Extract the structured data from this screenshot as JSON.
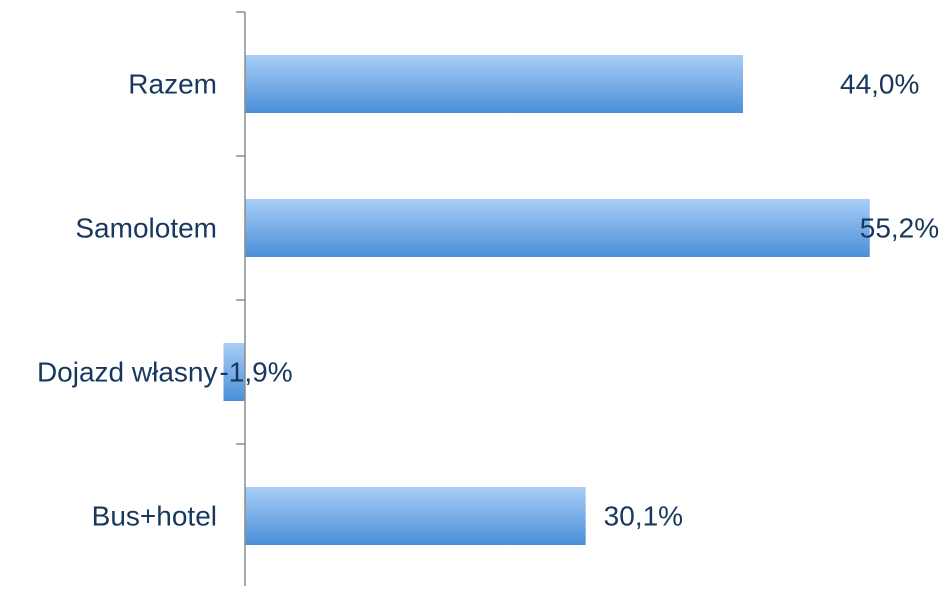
{
  "chart_data": {
    "type": "bar",
    "orientation": "horizontal",
    "categories": [
      "Razem",
      "Samolotem",
      "Dojazd własny",
      "Bus+hotel"
    ],
    "values": [
      44.0,
      55.2,
      -1.9,
      30.1
    ],
    "data_labels": [
      "44,0%",
      "55,2%",
      "-1,9%",
      "30,1%"
    ],
    "value_unit": "%",
    "xlim": [
      -1.9,
      55.2
    ],
    "title": "",
    "xlabel": "",
    "ylabel": "",
    "grid": false,
    "legend": "none",
    "colors": {
      "bar_top": "#A9CDF7",
      "bar_bottom": "#4A8FD8",
      "text": "#17375E",
      "axis": "#8C8C8C"
    }
  }
}
